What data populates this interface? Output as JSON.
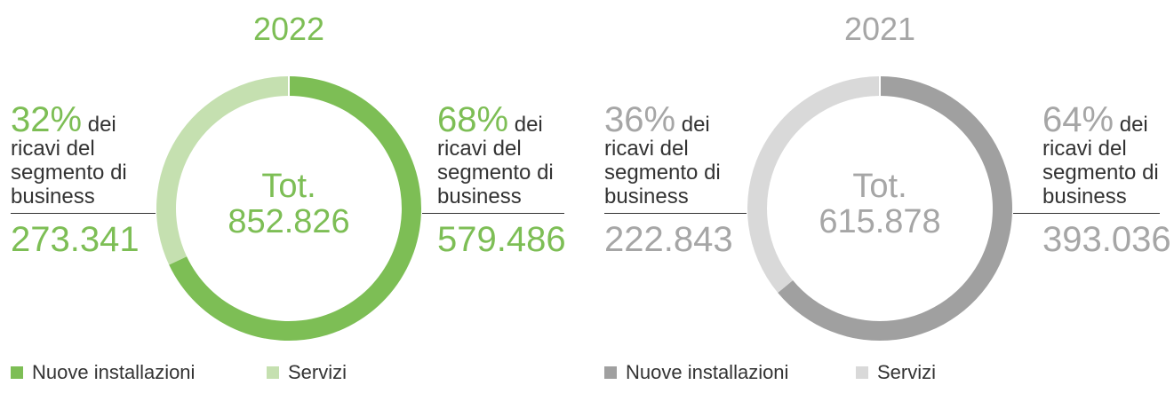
{
  "chart_data": [
    {
      "type": "pie",
      "title": "2022",
      "center_label": "Tot.",
      "total_label": "852.826",
      "categories": [
        "Nuove installazioni",
        "Servizi"
      ],
      "values": [
        68,
        32
      ],
      "value_labels": [
        "68%",
        "32%"
      ],
      "amount_labels": [
        "579.486",
        "273.341"
      ],
      "segment_text": "dei ricavi del segmento di business",
      "colors": [
        "#7dbe55",
        "#c5e0b0"
      ],
      "text_color": "#7dbe55"
    },
    {
      "type": "pie",
      "title": "2021",
      "center_label": "Tot.",
      "total_label": "615.878",
      "categories": [
        "Nuove installazioni",
        "Servizi"
      ],
      "values": [
        64,
        36
      ],
      "value_labels": [
        "64%",
        "36%"
      ],
      "amount_labels": [
        "393.036",
        "222.843"
      ],
      "segment_text": "dei ricavi del segmento di business",
      "colors": [
        "#a0a0a0",
        "#d9d9d9"
      ],
      "text_color": "#a6a6a6"
    }
  ]
}
